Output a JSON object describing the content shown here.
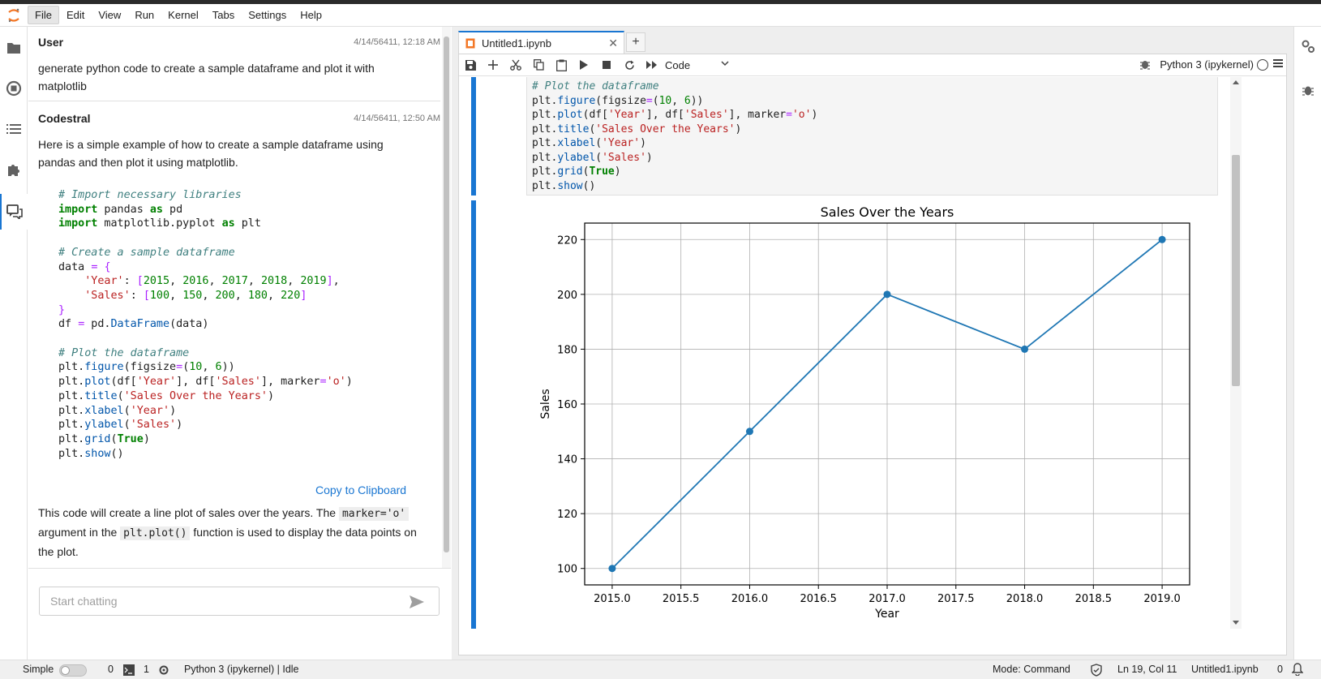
{
  "menubar": {
    "items": [
      "File",
      "Edit",
      "View",
      "Run",
      "Kernel",
      "Tabs",
      "Settings",
      "Help"
    ]
  },
  "chat": {
    "messages": [
      {
        "author": "User",
        "time": "4/14/56411, 12:18 AM",
        "text": "generate python code to create a sample dataframe and plot it with matplotlib"
      },
      {
        "author": "Codestral",
        "time": "4/14/56411, 12:50 AM",
        "intro": "Here is a simple example of how to create a sample dataframe using pandas and then plot it using matplotlib.",
        "copy_label": "Copy to Clipboard",
        "outro_a": "This code will create a line plot of sales over the years. The ",
        "outro_code_1": "marker='o'",
        "outro_b": " argument in the ",
        "outro_code_2": "plt.plot()",
        "outro_c": " function is used to display the data points on the plot."
      }
    ],
    "input_placeholder": "Start chatting"
  },
  "notebook": {
    "tab_title": "Untitled1.ipynb",
    "cell_type": "Code",
    "kernel": "Python 3 (ipykernel)"
  },
  "chart_data": {
    "type": "line",
    "title": "Sales Over the Years",
    "xlabel": "Year",
    "ylabel": "Sales",
    "x": [
      2015,
      2016,
      2017,
      2018,
      2019
    ],
    "series": [
      {
        "values": [
          100,
          150,
          200,
          180,
          220
        ],
        "color": "#1f77b4",
        "marker": "o"
      }
    ],
    "xticks": [
      "2015.0",
      "2015.5",
      "2016.0",
      "2016.5",
      "2017.0",
      "2017.5",
      "2018.0",
      "2018.5",
      "2019.0"
    ],
    "yticks": [
      "100",
      "120",
      "140",
      "160",
      "180",
      "200",
      "220"
    ],
    "xlim": [
      2014.8,
      2019.2
    ],
    "ylim": [
      94,
      226
    ],
    "grid": true
  },
  "statusbar": {
    "mode_label": "Simple",
    "terminals": "0",
    "kernels": "1",
    "kernel_status": "Python 3 (ipykernel) | Idle",
    "mode": "Mode: Command",
    "cursor": "Ln 19, Col 11",
    "file": "Untitled1.ipynb",
    "notifications": "0"
  }
}
